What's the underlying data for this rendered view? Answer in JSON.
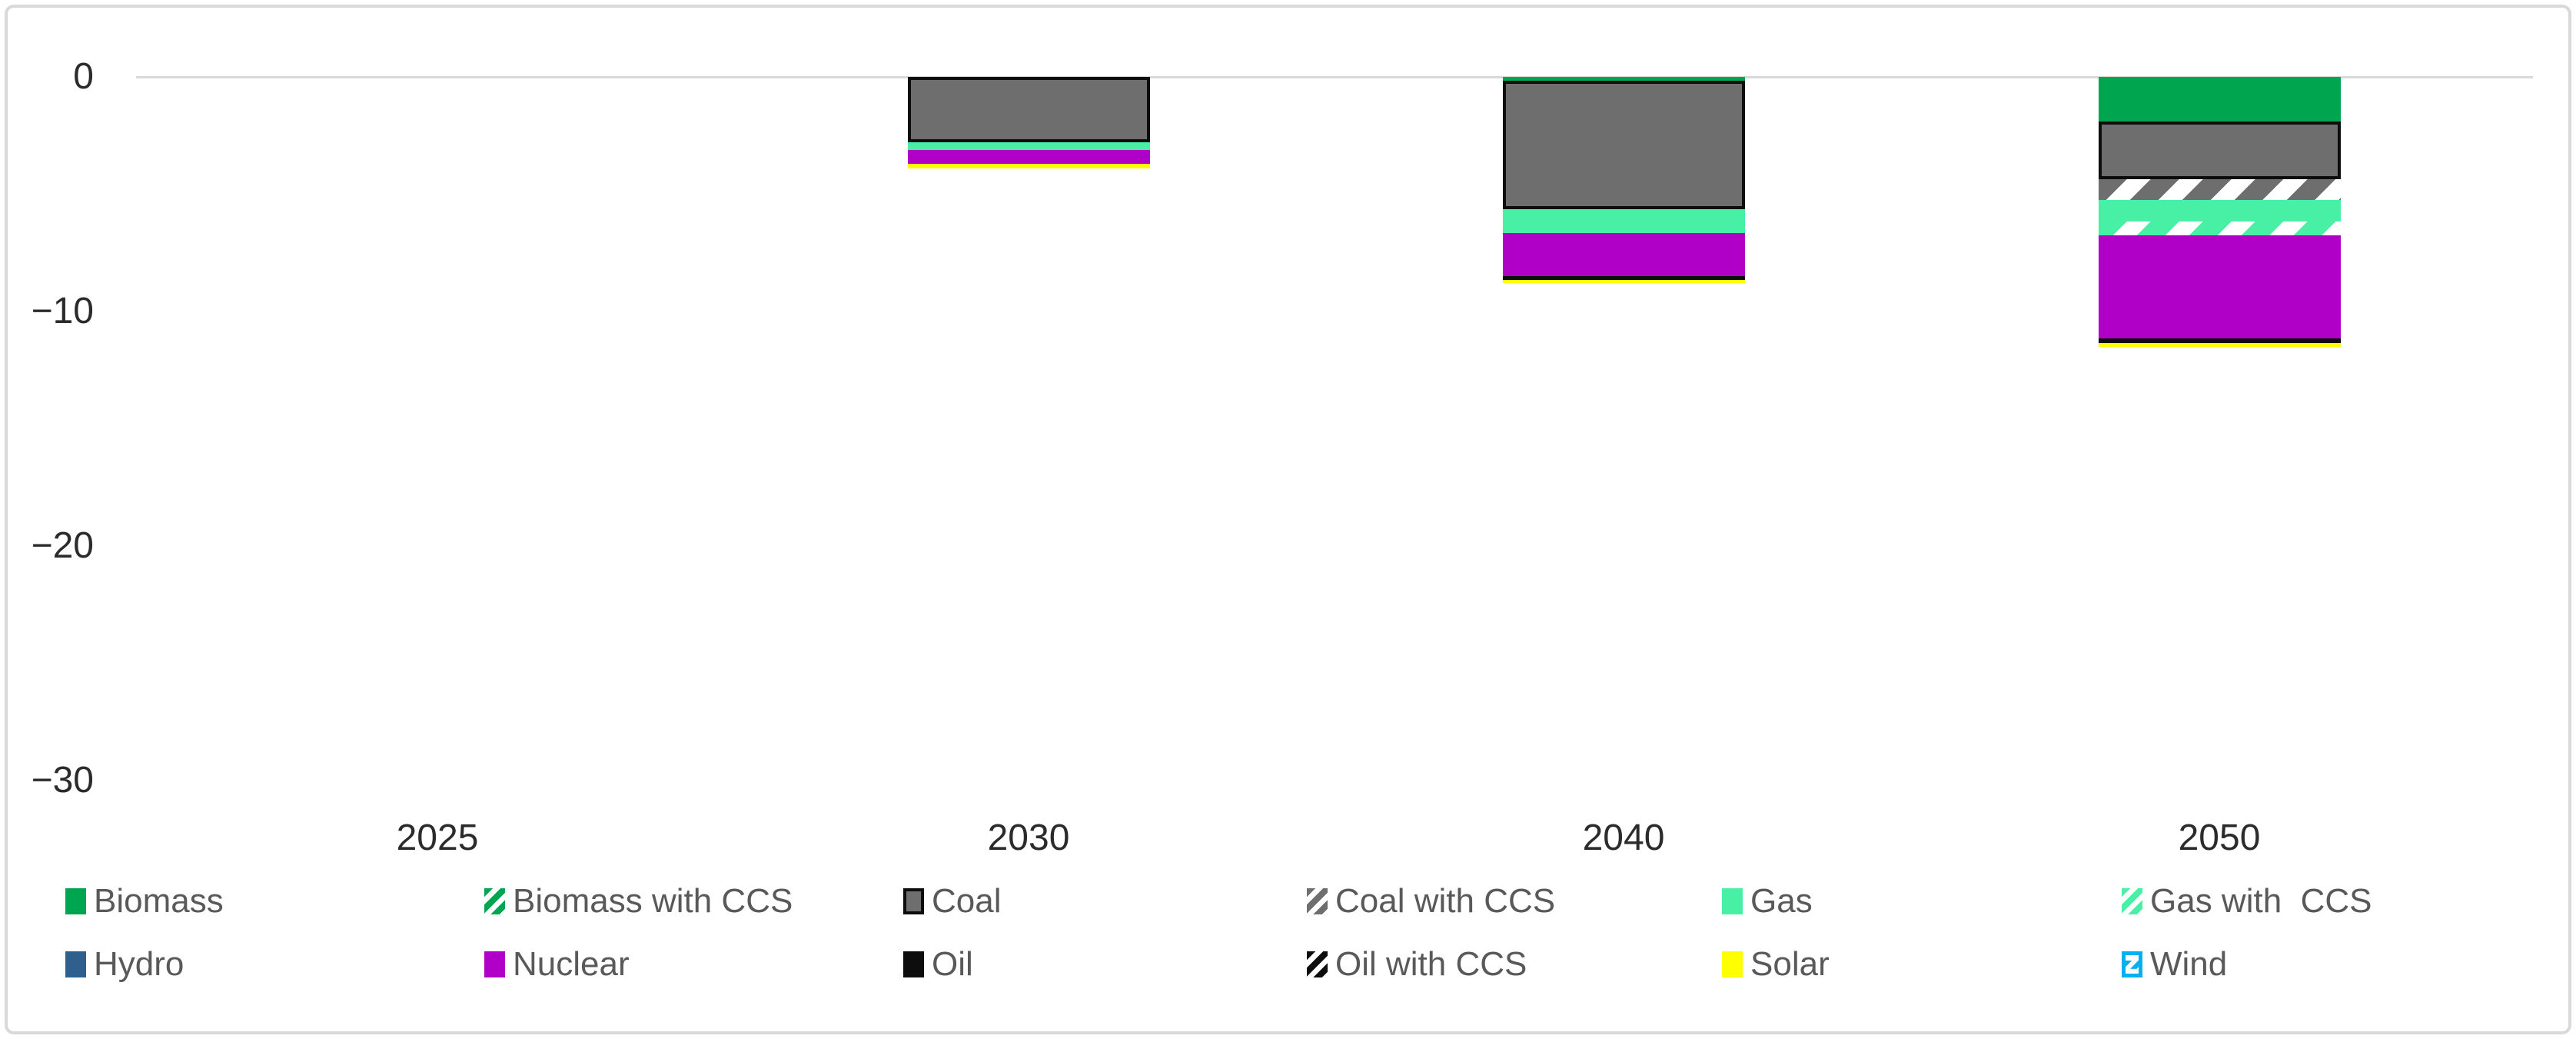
{
  "chart_data": {
    "type": "bar",
    "stacked": true,
    "orientation": "vertical-negative",
    "title": "",
    "xlabel": "",
    "ylabel": "",
    "categories": [
      "2025",
      "2030",
      "2040",
      "2050"
    ],
    "ylim": [
      -33,
      0
    ],
    "yticks": [
      0,
      -10,
      -20,
      -30
    ],
    "yticklabels": [
      "0",
      "−10",
      "−20",
      "−30"
    ],
    "grid": "zero-line-only",
    "legend_position": "bottom",
    "series": [
      {
        "name": "Biomass",
        "color": "#00a550",
        "pattern": "solid",
        "values": [
          0,
          0,
          -0.15,
          -1.9
        ]
      },
      {
        "name": "Biomass with CCS",
        "color": "#00a550",
        "pattern": "hatch",
        "values": [
          0,
          0,
          0,
          0
        ]
      },
      {
        "name": "Coal",
        "color": "#6e6e6e",
        "pattern": "solid",
        "border": "#0d0d0d",
        "values": [
          0,
          -2.8,
          -5.5,
          -2.45
        ]
      },
      {
        "name": "Coal with CCS",
        "color": "#6e6e6e",
        "pattern": "hatch",
        "values": [
          0,
          0,
          0,
          -0.9
        ]
      },
      {
        "name": "Gas",
        "color": "#47f0a5",
        "pattern": "solid",
        "values": [
          0,
          -0.3,
          -1.0,
          -0.9
        ]
      },
      {
        "name": "Gas with  CCS",
        "color": "#47f0a5",
        "pattern": "hatch",
        "values": [
          0,
          0,
          0,
          -0.6
        ]
      },
      {
        "name": "Hydro",
        "color": "#2e5f8d",
        "pattern": "solid",
        "values": [
          0,
          0,
          0,
          0
        ]
      },
      {
        "name": "Nuclear",
        "color": "#b000c8",
        "pattern": "solid",
        "values": [
          0,
          -0.6,
          -1.85,
          -4.4
        ]
      },
      {
        "name": "Oil",
        "color": "#0d0d0d",
        "pattern": "solid",
        "values": [
          0,
          0,
          -0.15,
          -0.2
        ]
      },
      {
        "name": "Oil with CCS",
        "color": "#0d0d0d",
        "pattern": "hatch",
        "values": [
          0,
          0,
          0,
          0
        ]
      },
      {
        "name": "Solar",
        "color": "#ffff00",
        "pattern": "solid",
        "values": [
          0,
          -0.2,
          -0.15,
          -0.15
        ]
      },
      {
        "name": "Wind",
        "color": "#00b0f0",
        "pattern": "wind",
        "values": [
          0,
          0,
          0,
          0
        ]
      }
    ],
    "colors": {
      "gridline": "#d9d9d9",
      "frame_border": "#d9d9d9",
      "axis_text": "#2b2b2b",
      "legend_text": "#595959"
    }
  }
}
